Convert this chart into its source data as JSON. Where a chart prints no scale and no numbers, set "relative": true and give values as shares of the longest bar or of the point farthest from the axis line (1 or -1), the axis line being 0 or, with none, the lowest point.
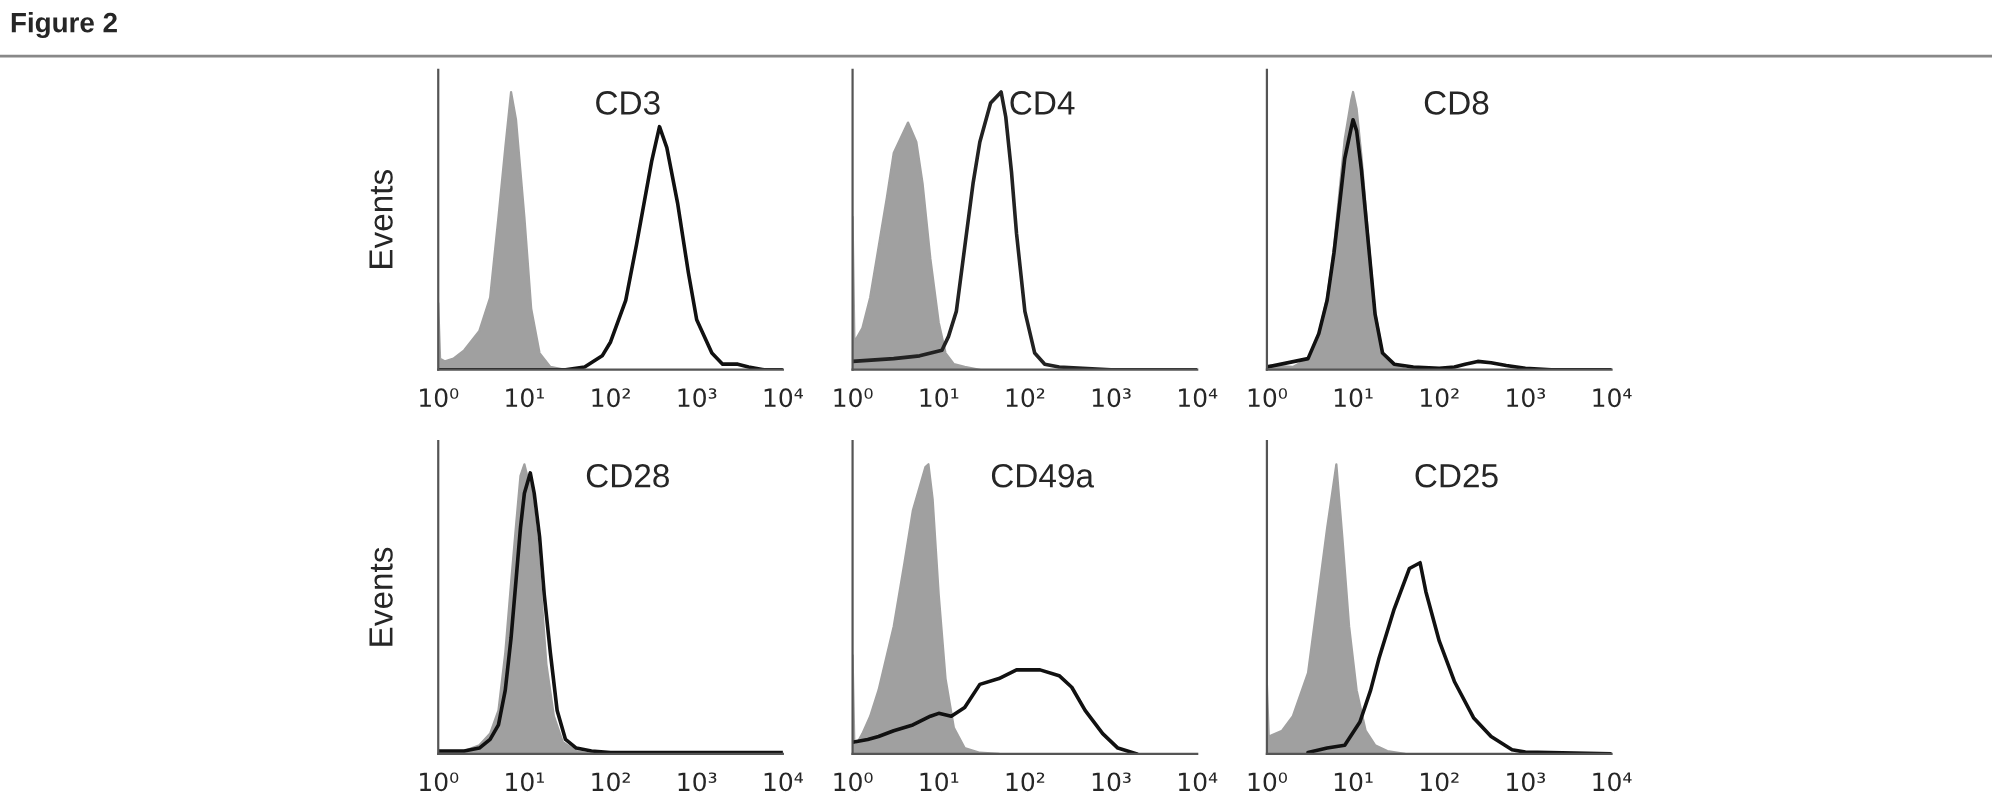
{
  "chart_data": [
    {
      "type": "area",
      "title": "CD3",
      "ylabel": "Events",
      "annotations": [
        "Figure 2"
      ],
      "relative": true,
      "log": "x",
      "tick_labels": "x",
      "xlim": [
        1,
        10000
      ],
      "xticks": [
        {
          "value": 1,
          "label": "10⁰"
        },
        {
          "value": 10,
          "label": "10¹"
        },
        {
          "value": 100,
          "label": "10²"
        },
        {
          "value": 1000,
          "label": "10³"
        },
        {
          "value": 10000,
          "label": "10⁴"
        }
      ],
      "series": [
        {
          "type": "area",
          "color": "#a0a0a0",
          "x": [
            1,
            1.05,
            1.2,
            1.5,
            2,
            3,
            4,
            5,
            6,
            7,
            8,
            10,
            12,
            15,
            20,
            30
          ],
          "values": [
            0.24,
            0.04,
            0.03,
            0.04,
            0.07,
            0.14,
            0.26,
            0.55,
            0.8,
            1.0,
            0.9,
            0.55,
            0.22,
            0.06,
            0.01,
            0
          ]
        },
        {
          "type": "line",
          "color": "#111111",
          "x": [
            1,
            10,
            30,
            50,
            80,
            100,
            150,
            200,
            300,
            370,
            450,
            600,
            800,
            1000,
            1500,
            2000,
            3000,
            4000,
            6000,
            10000
          ],
          "values": [
            0,
            0,
            0,
            0.01,
            0.05,
            0.1,
            0.25,
            0.45,
            0.75,
            0.875,
            0.8,
            0.6,
            0.35,
            0.18,
            0.06,
            0.02,
            0.02,
            0.01,
            0,
            0
          ]
        }
      ]
    },
    {
      "type": "area",
      "title": "CD4",
      "relative": true,
      "log": "x",
      "tick_labels": "x",
      "xlim": [
        1,
        10000
      ],
      "xticks": [
        {
          "value": 1,
          "label": "10⁰"
        },
        {
          "value": 10,
          "label": "10¹"
        },
        {
          "value": 100,
          "label": "10²"
        },
        {
          "value": 1000,
          "label": "10³"
        },
        {
          "value": 10000,
          "label": "10⁴"
        }
      ],
      "series": [
        {
          "type": "area",
          "color": "#a0a0a0",
          "x": [
            1,
            1.05,
            1.3,
            1.6,
            2,
            2.5,
            3,
            4.4,
            5.5,
            6.5,
            8,
            10,
            12,
            15,
            20,
            30
          ],
          "values": [
            0.55,
            0.1,
            0.15,
            0.26,
            0.44,
            0.62,
            0.78,
            0.89,
            0.82,
            0.67,
            0.4,
            0.17,
            0.06,
            0.02,
            0.01,
            0
          ]
        },
        {
          "type": "line",
          "color": "#222222",
          "x": [
            1,
            3,
            6,
            10.9,
            13,
            16,
            20,
            25,
            30,
            40,
            53,
            60,
            70,
            80,
            100,
            130,
            170,
            250,
            1000,
            10000
          ],
          "values": [
            0.03,
            0.04,
            0.05,
            0.07,
            0.12,
            0.21,
            0.44,
            0.67,
            0.82,
            0.96,
            1.0,
            0.91,
            0.71,
            0.49,
            0.21,
            0.06,
            0.02,
            0.01,
            0,
            0
          ]
        }
      ]
    },
    {
      "type": "area",
      "title": "CD8",
      "relative": true,
      "log": "x",
      "tick_labels": "x",
      "xlim": [
        1,
        10000
      ],
      "xticks": [
        {
          "value": 1,
          "label": "10⁰"
        },
        {
          "value": 10,
          "label": "10¹"
        },
        {
          "value": 100,
          "label": "10²"
        },
        {
          "value": 1000,
          "label": "10³"
        },
        {
          "value": 10000,
          "label": "10⁴"
        }
      ],
      "series": [
        {
          "type": "area",
          "color": "#a0a0a0",
          "x": [
            1,
            2,
            3,
            4,
            5,
            6,
            7,
            8,
            9.5,
            10,
            11,
            12.5,
            15,
            18,
            22,
            30,
            40,
            100
          ],
          "values": [
            0.015,
            0.01,
            0.04,
            0.13,
            0.26,
            0.44,
            0.65,
            0.83,
            0.97,
            1.0,
            0.94,
            0.77,
            0.48,
            0.21,
            0.06,
            0.015,
            0.004,
            0
          ]
        },
        {
          "type": "line",
          "color": "#111111",
          "x": [
            1,
            3,
            4,
            5,
            6,
            7,
            8,
            9.5,
            10,
            11,
            12.5,
            15,
            18,
            22,
            30,
            50,
            100,
            150,
            200,
            280,
            400,
            600,
            1000,
            2000,
            10000
          ],
          "values": [
            0.01,
            0.04,
            0.13,
            0.25,
            0.42,
            0.6,
            0.76,
            0.87,
            0.9,
            0.86,
            0.72,
            0.46,
            0.2,
            0.06,
            0.02,
            0.01,
            0.005,
            0.01,
            0.02,
            0.03,
            0.025,
            0.015,
            0.005,
            0,
            0
          ]
        }
      ]
    },
    {
      "type": "area",
      "title": "CD28",
      "ylabel": "Events",
      "relative": true,
      "log": "x",
      "tick_labels": "x",
      "xlim": [
        1,
        10000
      ],
      "xticks": [
        {
          "value": 1,
          "label": "10⁰"
        },
        {
          "value": 10,
          "label": "10¹"
        },
        {
          "value": 100,
          "label": "10²"
        },
        {
          "value": 1000,
          "label": "10³"
        },
        {
          "value": 10000,
          "label": "10⁴"
        }
      ],
      "series": [
        {
          "type": "area",
          "color": "#a0a0a0",
          "x": [
            1,
            2,
            3,
            4,
            5,
            6,
            7,
            8,
            9,
            10,
            11,
            12,
            14,
            16,
            18,
            22,
            28,
            40,
            60
          ],
          "values": [
            0.005,
            0.01,
            0.03,
            0.07,
            0.15,
            0.35,
            0.59,
            0.79,
            0.96,
            1.0,
            0.95,
            0.92,
            0.74,
            0.52,
            0.31,
            0.13,
            0.04,
            0.01,
            0
          ]
        },
        {
          "type": "line",
          "color": "#111111",
          "x": [
            1,
            2,
            3,
            4,
            5,
            6,
            7,
            8,
            9,
            10,
            11.7,
            13,
            15,
            17,
            20,
            24,
            30,
            40,
            60,
            100,
            10000
          ],
          "values": [
            0.01,
            0.01,
            0.02,
            0.05,
            0.1,
            0.22,
            0.4,
            0.6,
            0.78,
            0.9,
            0.97,
            0.9,
            0.75,
            0.55,
            0.35,
            0.15,
            0.05,
            0.02,
            0.01,
            0.005,
            0.005
          ]
        }
      ]
    },
    {
      "type": "area",
      "title": "CD49a",
      "relative": true,
      "log": "x",
      "tick_labels": "x",
      "xlim": [
        1,
        10000
      ],
      "xticks": [
        {
          "value": 1,
          "label": "10⁰"
        },
        {
          "value": 10,
          "label": "10¹"
        },
        {
          "value": 100,
          "label": "10²"
        },
        {
          "value": 1000,
          "label": "10³"
        },
        {
          "value": 10000,
          "label": "10⁴"
        }
      ],
      "series": [
        {
          "type": "area",
          "color": "#a0a0a0",
          "x": [
            1,
            1.05,
            1.3,
            1.6,
            2,
            3,
            4,
            5,
            7,
            7.6,
            8.5,
            10,
            12,
            15,
            20,
            30,
            50
          ],
          "values": [
            0.34,
            0.02,
            0.07,
            0.13,
            0.22,
            0.44,
            0.66,
            0.84,
            0.99,
            1.0,
            0.88,
            0.55,
            0.26,
            0.09,
            0.02,
            0.004,
            0
          ]
        },
        {
          "type": "line",
          "color": "#111111",
          "x": [
            1,
            1.5,
            2,
            3,
            5,
            8,
            10,
            14,
            20,
            30,
            50,
            80,
            150,
            250,
            350,
            500,
            800,
            1200,
            2000
          ],
          "values": [
            0.04,
            0.05,
            0.06,
            0.08,
            0.1,
            0.13,
            0.14,
            0.13,
            0.16,
            0.24,
            0.26,
            0.29,
            0.29,
            0.27,
            0.23,
            0.15,
            0.07,
            0.02,
            0
          ]
        }
      ]
    },
    {
      "type": "area",
      "title": "CD25",
      "relative": true,
      "log": "x",
      "tick_labels": "x",
      "xlim": [
        1,
        10000
      ],
      "xticks": [
        {
          "value": 1,
          "label": "10⁰"
        },
        {
          "value": 10,
          "label": "10¹"
        },
        {
          "value": 100,
          "label": "10²"
        },
        {
          "value": 1000,
          "label": "10³"
        },
        {
          "value": 10000,
          "label": "10⁴"
        }
      ],
      "series": [
        {
          "type": "area",
          "color": "#a0a0a0",
          "x": [
            1,
            1.05,
            1.5,
            2,
            3,
            4,
            5,
            6.4,
            7.5,
            9,
            11,
            14,
            18,
            25,
            40
          ],
          "values": [
            0.24,
            0.06,
            0.08,
            0.13,
            0.28,
            0.56,
            0.78,
            1.0,
            0.75,
            0.44,
            0.22,
            0.08,
            0.03,
            0.01,
            0
          ]
        },
        {
          "type": "line",
          "color": "#111111",
          "x": [
            3,
            5,
            8,
            12,
            16,
            20,
            30,
            45,
            60,
            70,
            100,
            150,
            250,
            400,
            700,
            1000,
            10000
          ],
          "values": [
            0.005,
            0.02,
            0.03,
            0.11,
            0.22,
            0.33,
            0.5,
            0.64,
            0.66,
            0.56,
            0.39,
            0.25,
            0.125,
            0.06,
            0.014,
            0.006,
            0
          ]
        }
      ]
    }
  ]
}
